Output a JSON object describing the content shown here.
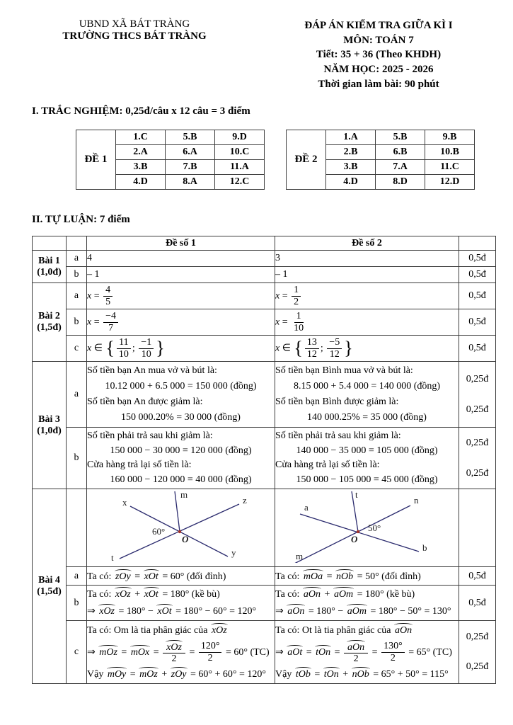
{
  "colors": {
    "diagram_line": "#2b2b6e",
    "vertex_dot": "#a3322a",
    "text": "#000000",
    "table_border": "#3c3c3c"
  },
  "header": {
    "org_line1": "UBND XÃ BÁT TRÀNG",
    "org_line2": "TRƯỜNG THCS BÁT TRÀNG",
    "title_line1": "ĐÁP ÁN KIỂM TRA GIỮA KÌ I",
    "title_line2": "MÔN: TOÁN 7",
    "title_line3": "Tiết: 35 + 36 (Theo KHDH)",
    "title_line4": "NĂM HỌC: 2025 - 2026",
    "title_line5": "Thời gian làm bài: 90 phút"
  },
  "section1": {
    "heading": "I. TRẮC NGHIỆM: 0,25đ/câu x 12 câu = 3 điểm",
    "de1": {
      "label": "ĐỀ 1",
      "rows": [
        [
          "1.C",
          "5.B",
          "9.D"
        ],
        [
          "2.A",
          "6.A",
          "10.C"
        ],
        [
          "3.B",
          "7.B",
          "11.A"
        ],
        [
          "4.D",
          "8.A",
          "12.C"
        ]
      ]
    },
    "de2": {
      "label": "ĐỀ 2",
      "rows": [
        [
          "1.A",
          "5.B",
          "9.B"
        ],
        [
          "2.B",
          "6.B",
          "10.B"
        ],
        [
          "3.B",
          "7.A",
          "11.C"
        ],
        [
          "4.D",
          "8.D",
          "12.D"
        ]
      ]
    }
  },
  "section2": {
    "heading": "II. TỰ LUẬN: 7 điểm",
    "col_de1": "Đề số 1",
    "col_de2": "Đề số 2",
    "bai1": {
      "label": "Bài 1",
      "points_label": "(1,0đ)",
      "a": {
        "part": "a",
        "de1": "4",
        "de2": "3",
        "score": "0,5đ"
      },
      "b": {
        "part": "b",
        "de1": "– 1",
        "de2": "– 1",
        "score": "0,5đ"
      }
    },
    "bai2": {
      "label": "Bài 2",
      "points_label": "(1,5đ)",
      "a": {
        "part": "a",
        "de1": "[i:x] = [f:4/5]",
        "de2": "[i:x] = [f:1/2]",
        "score": "0,5đ"
      },
      "b": {
        "part": "b",
        "de1": "[i:x] = [f:−4/7]",
        "de2": "[i:x] = [f:1/10]",
        "score": "0,5đ"
      },
      "c": {
        "part": "c",
        "de1": "[i:x] ∈ {[f:11/10]; [f:−1/10]}",
        "de2": "[i:x] ∈ {[f:13/12]; [f:−5/12]}",
        "score": "0,5đ"
      }
    },
    "bai3": {
      "label": "Bài 3",
      "points_label": "(1,0đ)",
      "a": {
        "part": "a",
        "de1": [
          "Số tiền bạn An mua vở và bút là:",
          "10.12 000 + 6.5 000 = 150 000 (đồng)",
          "Số tiền bạn An được giảm là:",
          "150 000.20% = 30 000 (đồng)"
        ],
        "de2": [
          "Số tiền bạn Bình mua vở và bút là:",
          "8.15 000 + 5.4 000 = 140 000 (đồng)",
          "Số tiền bạn Bình được giảm là:",
          "140 000.25% = 35 000 (đồng)"
        ],
        "scores": [
          "0,25đ",
          "0,25đ"
        ]
      },
      "b": {
        "part": "b",
        "de1": [
          "Số tiền phải trả sau khi giảm là:",
          "150 000 − 30 000 = 120 000 (đồng)",
          "Cửa hàng trả lại số tiền là:",
          "160 000 − 120 000 = 40 000 (đồng)"
        ],
        "de2": [
          "Số tiền phải trả sau khi giảm là:",
          "140 000 − 35 000 = 105 000 (đồng)",
          "Cửa hàng trả lại số tiền là:",
          "150 000 − 105 000 = 45 000 (đồng)"
        ],
        "scores": [
          "0,25đ",
          "0,25đ"
        ]
      }
    },
    "bai4": {
      "label": "Bài 4",
      "points_label": "(1,5đ)",
      "a": {
        "part": "a",
        "de1": "Ta có: [a:zOy] = [a:xOt] = 60° (đối đỉnh)",
        "de2": "Ta có: [a:mOa] = [a:nOb] = 50° (đối đỉnh)",
        "score": "0,5đ"
      },
      "b": {
        "part": "b",
        "de1": [
          "Ta có: [a:xOz] + [a:xOt] = 180° (kề bù)",
          "⇒ [a:xOz] = 180° − [a:xOt] = 180° − 60° = 120°"
        ],
        "de2": [
          "Ta có: [a:aOn] + [a:aOm] = 180° (kề bù)",
          "⇒ [a:aOn] = 180° − [a:aOm] = 180° − 50° = 130°"
        ],
        "score": "0,5đ"
      },
      "c": {
        "part": "c",
        "de1": [
          "Ta có: Om là tia phân giác của [a:xOz]",
          "⇒ [a:mOz] = [a:mOx] = [f:[a:xOz]/2] = [f:120°/2] = 60° (TC)",
          "Vậy [a:mOy] = [a:mOz] + [a:zOy] = 60° + 60° = 120°"
        ],
        "de2": [
          "Ta có: Ot là tia phân giác của [a:aOn]",
          "⇒ [a:aOt] = [a:tOn] = [f:[a:aOn]/2] = [f:130°/2] = 65° (TC)",
          "Vậy [a:tOb] = [a:tOn] + [a:nOb] = 65° + 50° = 115°"
        ],
        "scores": [
          "0,25đ",
          "0,25đ"
        ]
      }
    }
  },
  "diagrams": {
    "d1": {
      "m": "m",
      "x": "x",
      "z": "z",
      "t": "t",
      "y": "y",
      "o": "O",
      "angle": "60°"
    },
    "d2": {
      "t": "t",
      "a": "a",
      "n": "n",
      "m": "m",
      "b": "b",
      "o": "O",
      "angle": "50°"
    }
  }
}
